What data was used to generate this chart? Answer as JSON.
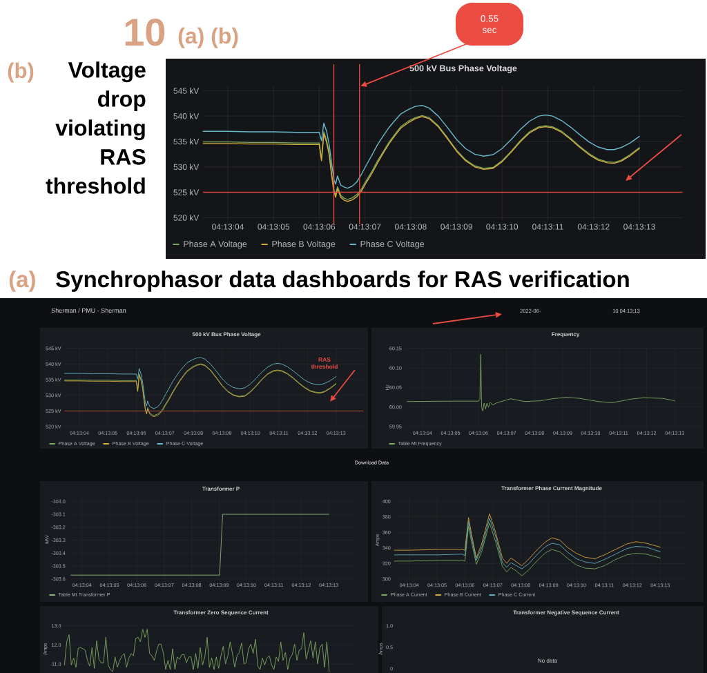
{
  "chart_data": [
    {
      "type": "line",
      "title": "500 kV Bus Phase Voltage",
      "annotations": [
        "10",
        "(a) (b)",
        "(b)",
        "Voltage drop violating RAS threshold",
        "0.55 sec"
      ],
      "x": [
        4.217628,
        4.217778,
        4.217917,
        4.218056,
        4.218194,
        4.218333,
        4.218347,
        4.218361,
        4.218378,
        4.218394,
        4.218408,
        4.218422,
        4.218433,
        4.218444,
        4.218464,
        4.218486,
        4.218506,
        4.218533,
        4.218561,
        4.218589,
        4.218617,
        4.218653,
        4.218686,
        4.218722,
        4.218756,
        4.218792,
        4.218828,
        4.218875,
        4.218917,
        4.218958,
        4.219,
        4.219056,
        4.219111,
        4.219167,
        4.219222,
        4.219278,
        4.219333,
        4.219389,
        4.219444,
        4.2195,
        4.219556,
        4.219611,
        4.219667,
        4.219708,
        4.21975,
        4.219806,
        4.219861,
        4.219917,
        4.219972,
        4.220028,
        4.220083,
        4.220125,
        4.220167,
        4.220222,
        4.220278
      ],
      "xlim": [
        4.217627,
        4.22054
      ],
      "xticks": [
        {
          "value": 4.217778,
          "label": "04:13:04"
        },
        {
          "value": 4.218056,
          "label": "04:13:05"
        },
        {
          "value": 4.218333,
          "label": "04:13:06"
        },
        {
          "value": 4.218611,
          "label": "04:13:07"
        },
        {
          "value": 4.218889,
          "label": "04:13:08"
        },
        {
          "value": 4.219167,
          "label": "04:13:09"
        },
        {
          "value": 4.219444,
          "label": "04:13:10"
        },
        {
          "value": 4.219722,
          "label": "04:13:11"
        },
        {
          "value": 4.22,
          "label": "04:13:12"
        },
        {
          "value": 4.220278,
          "label": "04:13:13"
        }
      ],
      "ylim": [
        519.5,
        546
      ],
      "yticks": [
        {
          "value": 520,
          "label": "520 kV"
        },
        {
          "value": 525,
          "label": "525 kV"
        },
        {
          "value": 530,
          "label": "530 kV"
        },
        {
          "value": 535,
          "label": "535 kV"
        },
        {
          "value": 540,
          "label": "540 kV"
        },
        {
          "value": 545,
          "label": "545 kV"
        }
      ],
      "series": [
        {
          "name": "Phase A Voltage",
          "color": "#78a85a",
          "values": [
            534.9,
            534.9,
            534.8,
            534.8,
            534.7,
            534.7,
            531.6,
            536.9,
            535.2,
            532.7,
            528.8,
            525.6,
            524.4,
            526.1,
            524.4,
            523.8,
            523.6,
            523.9,
            524.5,
            525.6,
            527.2,
            529.1,
            531.1,
            533.0,
            534.8,
            536.4,
            537.9,
            539.0,
            539.7,
            540.1,
            539.7,
            538.1,
            535.8,
            533.3,
            531.4,
            530.2,
            529.7,
            529.9,
            531.2,
            533.1,
            535.2,
            536.9,
            537.9,
            538.1,
            537.9,
            537.0,
            535.6,
            534.0,
            532.6,
            531.5,
            531.0,
            530.9,
            531.3,
            532.4,
            533.8
          ]
        },
        {
          "name": "Phase B Voltage",
          "color": "#d8ac3c",
          "values": [
            534.6,
            534.6,
            534.5,
            534.5,
            534.4,
            534.4,
            531.2,
            536.5,
            534.8,
            532.3,
            528.4,
            525.1,
            524.0,
            525.7,
            524.0,
            523.4,
            523.2,
            523.5,
            524.1,
            525.2,
            526.8,
            528.7,
            530.7,
            532.7,
            534.5,
            536.1,
            537.6,
            538.7,
            539.5,
            539.9,
            539.5,
            537.9,
            535.6,
            533.1,
            531.2,
            530.0,
            529.5,
            529.7,
            531.0,
            532.9,
            535.0,
            536.7,
            537.7,
            537.9,
            537.7,
            536.8,
            535.4,
            533.8,
            532.4,
            531.3,
            530.8,
            530.7,
            531.1,
            532.2,
            533.6
          ]
        },
        {
          "name": "Phase C Voltage",
          "color": "#67b9cb",
          "values": [
            537.0,
            537.0,
            536.9,
            536.9,
            536.8,
            536.8,
            535.2,
            538.6,
            537.0,
            534.3,
            530.8,
            527.5,
            526.6,
            528.2,
            526.4,
            526.0,
            525.8,
            526.2,
            527.0,
            528.5,
            530.2,
            532.3,
            534.3,
            536.1,
            537.7,
            539.1,
            540.4,
            541.3,
            541.9,
            542.1,
            541.6,
            540.0,
            537.8,
            535.4,
            533.6,
            532.5,
            532.1,
            532.4,
            533.6,
            535.4,
            537.4,
            539.0,
            540.0,
            540.2,
            540.0,
            539.1,
            537.8,
            536.3,
            534.9,
            533.9,
            533.4,
            533.4,
            533.8,
            534.7,
            536.0
          ]
        }
      ],
      "ref_lines": [
        {
          "axis": "y",
          "value": 525,
          "color": "#d9473c"
        },
        {
          "axis": "x",
          "value": 4.218422,
          "color": "#ef4b40"
        },
        {
          "axis": "x",
          "value": 4.218578,
          "color": "#ef4b40"
        }
      ],
      "grid": true,
      "legend": "bottom left"
    },
    {
      "type": "line",
      "title": "500 kV Bus Phase Voltage",
      "annotations": [
        "(a)",
        "Synchrophasor data dashboards for RAS verification",
        "Sherman / PMU - Sherman",
        "2022-06-",
        "10 04:13:13",
        "RAS threshold",
        "Download Data"
      ],
      "x": [
        4.217633,
        4.217778,
        4.217917,
        4.218056,
        4.218194,
        4.218333,
        4.218347,
        4.218361,
        4.218378,
        4.218394,
        4.218408,
        4.218422,
        4.218433,
        4.218444,
        4.218464,
        4.218486,
        4.218506,
        4.218533,
        4.218561,
        4.218589,
        4.218617,
        4.218653,
        4.218686,
        4.218722,
        4.218756,
        4.218792,
        4.218828,
        4.218875,
        4.218917,
        4.218958,
        4.219,
        4.219056,
        4.219111,
        4.219167,
        4.219222,
        4.219278,
        4.219333,
        4.219389,
        4.219444,
        4.2195,
        4.219556,
        4.219611,
        4.219667,
        4.219708,
        4.21975,
        4.219806,
        4.219861,
        4.219917,
        4.219972,
        4.220028,
        4.220083,
        4.220125,
        4.220167,
        4.220222,
        4.220278
      ],
      "xlim": [
        4.217633,
        4.220547
      ],
      "xticks": [
        {
          "value": 4.217778,
          "label": "04:13:04"
        },
        {
          "value": 4.218056,
          "label": "04:13:05"
        },
        {
          "value": 4.218333,
          "label": "04:13:06"
        },
        {
          "value": 4.218611,
          "label": "04:13:07"
        },
        {
          "value": 4.218889,
          "label": "04:13:08"
        },
        {
          "value": 4.219167,
          "label": "04:13:09"
        },
        {
          "value": 4.219444,
          "label": "04:13:10"
        },
        {
          "value": 4.219722,
          "label": "04:13:11"
        },
        {
          "value": 4.22,
          "label": "04:13:12"
        },
        {
          "value": 4.220278,
          "label": "04:13:13"
        }
      ],
      "ylim": [
        519.5,
        546
      ],
      "yticks": [
        {
          "value": 520,
          "label": "520 kV"
        },
        {
          "value": 525,
          "label": "525 kV"
        },
        {
          "value": 530,
          "label": "530 kV"
        },
        {
          "value": 535,
          "label": "535 kV"
        },
        {
          "value": 540,
          "label": "540 kV"
        },
        {
          "value": 545,
          "label": "545 kV"
        }
      ],
      "series": [
        {
          "name": "Phase A Voltage",
          "color": "#78a85a",
          "values": [
            534.9,
            534.9,
            534.8,
            534.8,
            534.7,
            534.7,
            531.6,
            536.9,
            535.2,
            532.7,
            528.8,
            525.6,
            524.4,
            526.1,
            524.4,
            523.8,
            523.6,
            523.9,
            524.5,
            525.6,
            527.2,
            529.1,
            531.1,
            533.0,
            534.8,
            536.4,
            537.9,
            539.0,
            539.7,
            540.1,
            539.7,
            538.1,
            535.8,
            533.3,
            531.4,
            530.2,
            529.7,
            529.9,
            531.2,
            533.1,
            535.2,
            536.9,
            537.9,
            538.1,
            537.9,
            537.0,
            535.6,
            534.0,
            532.6,
            531.5,
            531.0,
            530.9,
            531.3,
            532.4,
            533.8
          ]
        },
        {
          "name": "Phase B Voltage",
          "color": "#d8ac3c",
          "values": [
            534.6,
            534.6,
            534.5,
            534.5,
            534.4,
            534.4,
            531.2,
            536.5,
            534.8,
            532.3,
            528.4,
            525.1,
            524.0,
            525.7,
            524.0,
            523.4,
            523.2,
            523.5,
            524.1,
            525.2,
            526.8,
            528.7,
            530.7,
            532.7,
            534.5,
            536.1,
            537.6,
            538.7,
            539.5,
            539.9,
            539.5,
            537.9,
            535.6,
            533.1,
            531.2,
            530.0,
            529.5,
            529.7,
            531.0,
            532.9,
            535.0,
            536.7,
            537.7,
            537.9,
            537.7,
            536.8,
            535.4,
            533.8,
            532.4,
            531.3,
            530.8,
            530.7,
            531.1,
            532.2,
            533.6
          ]
        },
        {
          "name": "Phase C Voltage",
          "color": "#67b9cb",
          "values": [
            537.0,
            537.0,
            536.9,
            536.9,
            536.8,
            536.8,
            535.2,
            538.6,
            537.0,
            534.3,
            530.8,
            527.5,
            526.6,
            528.2,
            526.4,
            526.0,
            525.8,
            526.2,
            527.0,
            528.5,
            530.2,
            532.3,
            534.3,
            536.1,
            537.7,
            539.1,
            540.4,
            541.3,
            541.9,
            542.1,
            541.6,
            540.0,
            537.8,
            535.4,
            533.6,
            532.5,
            532.1,
            532.4,
            533.6,
            535.4,
            537.4,
            539.0,
            540.0,
            540.2,
            540.0,
            539.1,
            537.8,
            536.3,
            534.9,
            533.9,
            533.4,
            533.4,
            533.8,
            534.7,
            536.0
          ]
        }
      ],
      "ref_lines": [
        {
          "axis": "y",
          "value": 525,
          "color": "#c9443a"
        }
      ],
      "grid": true,
      "legend": "bottom left"
    },
    {
      "type": "line",
      "title": "Frequency",
      "ylabel": "Hz",
      "x": [
        4.217628,
        4.218056,
        4.218333,
        4.218347,
        4.218356,
        4.218364,
        4.218375,
        4.218389,
        4.218403,
        4.218417,
        4.218433,
        4.21845,
        4.218472,
        4.218517,
        4.218611,
        4.218653,
        4.218792,
        4.218944,
        4.219064,
        4.2192,
        4.219339,
        4.219519,
        4.219658,
        4.219839,
        4.219975,
        4.220158,
        4.220278
      ],
      "xlim": [
        4.217606,
        4.220542
      ],
      "xticks": [
        {
          "value": 4.217778,
          "label": "04:13:04"
        },
        {
          "value": 4.218056,
          "label": "04:13:05"
        },
        {
          "value": 4.218333,
          "label": "04:13:06"
        },
        {
          "value": 4.218611,
          "label": "04:13:07"
        },
        {
          "value": 4.218889,
          "label": "04:13:08"
        },
        {
          "value": 4.219167,
          "label": "04:13:09"
        },
        {
          "value": 4.219444,
          "label": "04:13:10"
        },
        {
          "value": 4.219722,
          "label": "04:13:11"
        },
        {
          "value": 4.22,
          "label": "04:13:12"
        },
        {
          "value": 4.220278,
          "label": "04:13:13"
        }
      ],
      "ylim": [
        59.945,
        60.155
      ],
      "yticks": [
        59.95,
        {
          "value": 60,
          "label": "60.00"
        },
        60.05,
        {
          "value": 60.1,
          "label": "60.10"
        },
        60.15
      ],
      "series": [
        {
          "name": "Table Mt Frequency",
          "color": "#7fa860",
          "values": [
            60.014,
            60.015,
            60.015,
            60.02,
            60.135,
            60.0,
            59.99,
            60.01,
            59.995,
            60.01,
            60.0,
            60.012,
            60.005,
            60.011,
            60.018,
            60.021,
            60.014,
            60.016,
            60.021,
            60.025,
            60.022,
            60.014,
            60.011,
            60.02,
            60.024,
            60.022,
            60.016
          ]
        }
      ],
      "grid": true,
      "legend": "bottom left"
    },
    {
      "type": "line",
      "title": "Transformer P",
      "ylabel": "MW",
      "x": [
        4.217664,
        4.219172,
        4.219203,
        4.220278
      ],
      "xlim": [
        4.217664,
        4.22055
      ],
      "xticks": [
        {
          "value": 4.217778,
          "label": "04:13:04"
        },
        {
          "value": 4.218056,
          "label": "04:13:05"
        },
        {
          "value": 4.218333,
          "label": "04:13:06"
        },
        {
          "value": 4.218611,
          "label": "04:13:07"
        },
        {
          "value": 4.218889,
          "label": "04:13:08"
        },
        {
          "value": 4.219167,
          "label": "04:13:09"
        },
        {
          "value": 4.219444,
          "label": "04:13:10"
        },
        {
          "value": 4.219722,
          "label": "04:13:11"
        },
        {
          "value": 4.22,
          "label": "04:13:12"
        },
        {
          "value": 4.220278,
          "label": "04:13:13"
        }
      ],
      "ylim": [
        -303.62,
        -302.97
      ],
      "yticks": [
        -303.6,
        -303.5,
        -303.4,
        -303.3,
        -303.2,
        -303.1,
        {
          "value": -303,
          "label": "-303.0"
        }
      ],
      "series": [
        {
          "name": "Table Mt Transformer P",
          "color": "#8fb37a",
          "values": [
            -303.57,
            -303.57,
            -303.1,
            -303.1
          ]
        }
      ],
      "grid": true,
      "legend": "bottom left"
    },
    {
      "type": "line",
      "title": "Transformer Phase Current Magnitude",
      "ylabel": "Amps",
      "x": [
        4.217631,
        4.217778,
        4.218056,
        4.218306,
        4.218333,
        4.218369,
        4.218403,
        4.218447,
        4.2185,
        4.218578,
        4.218639,
        4.218706,
        4.21875,
        4.218792,
        4.218847,
        4.2189,
        4.218972,
        4.219056,
        4.219139,
        4.2192,
        4.219278,
        4.219361,
        4.219444,
        4.219528,
        4.219628,
        4.219722,
        4.219833,
        4.219944,
        4.220036,
        4.220139,
        4.220278
      ],
      "xlim": [
        4.217631,
        4.220531
      ],
      "xticks": [
        {
          "value": 4.217778,
          "label": "04:13:04"
        },
        {
          "value": 4.218056,
          "label": "04:13:05"
        },
        {
          "value": 4.218333,
          "label": "04:13:06"
        },
        {
          "value": 4.218611,
          "label": "04:13:07"
        },
        {
          "value": 4.218889,
          "label": "04:13:08"
        },
        {
          "value": 4.219167,
          "label": "04:13:09"
        },
        {
          "value": 4.219444,
          "label": "04:13:10"
        },
        {
          "value": 4.219722,
          "label": "04:13:11"
        },
        {
          "value": 4.22,
          "label": "04:13:12"
        },
        {
          "value": 4.220278,
          "label": "04:13:13"
        }
      ],
      "ylim": [
        296,
        404
      ],
      "yticks": [
        300,
        320,
        340,
        360,
        380,
        400
      ],
      "series": [
        {
          "name": "Phase A Current",
          "color": "#78a85a",
          "values": [
            323,
            323,
            324,
            324,
            323,
            368,
            345,
            319,
            335,
            372,
            348,
            316,
            309,
            315,
            310,
            304,
            312,
            324,
            334,
            338,
            335,
            326,
            318,
            314,
            313,
            317,
            325,
            331,
            333,
            332,
            327
          ]
        },
        {
          "name": "Phase B Current",
          "color": "#d9a53f",
          "values": [
            337,
            337,
            338,
            338,
            337,
            379,
            355,
            327,
            345,
            384,
            360,
            327,
            320,
            327,
            322,
            317,
            326,
            338,
            348,
            353,
            350,
            340,
            333,
            328,
            326,
            331,
            338,
            345,
            348,
            346,
            341
          ]
        },
        {
          "name": "Phase C Current",
          "color": "#5fb0c4",
          "values": [
            331,
            331,
            331,
            332,
            330,
            374,
            350,
            324,
            340,
            378,
            355,
            321,
            315,
            321,
            317,
            313,
            320,
            332,
            342,
            346,
            344,
            334,
            326,
            322,
            320,
            325,
            332,
            339,
            342,
            341,
            335
          ]
        }
      ],
      "grid": true,
      "legend": "bottom left"
    },
    {
      "type": "line",
      "title": "Transformer Zero Sequence Current",
      "ylabel": "Amps",
      "categories": [
        null,
        null,
        null,
        null,
        null,
        null,
        null,
        null,
        null,
        null,
        null,
        null,
        null,
        null,
        null,
        null,
        null,
        null,
        null,
        null,
        null,
        null,
        null,
        null,
        null,
        null,
        null,
        null,
        null,
        null,
        null,
        null,
        null,
        null,
        null,
        null,
        null,
        null,
        null,
        null,
        null,
        null,
        null,
        null,
        null,
        null,
        null,
        null,
        null,
        null,
        null,
        null,
        null,
        null,
        null,
        null,
        null,
        null,
        null,
        null,
        null,
        null,
        null,
        null,
        null,
        null,
        null,
        null,
        null,
        null,
        null,
        null,
        null,
        null,
        null,
        null,
        null,
        null,
        null,
        null,
        null,
        null,
        null,
        null,
        null,
        null,
        null,
        null,
        null,
        null,
        null,
        null,
        null,
        null,
        null,
        null,
        null,
        null,
        null,
        null,
        null,
        null,
        null,
        null,
        null,
        null,
        null,
        null,
        null,
        null,
        null,
        null,
        null,
        null,
        null,
        null
      ],
      "values": [
        10.95,
        12.16,
        12.54,
        10.95,
        11.31,
        10.83,
        11.82,
        11.86,
        11.8,
        11.73,
        11.19,
        10.89,
        11.86,
        10.77,
        12.22,
        11.25,
        11.07,
        11.07,
        12.42,
        10.95,
        10.71,
        10.6,
        11.37,
        10.83,
        11.19,
        11.43,
        11.55,
        10.83,
        11.31,
        11.55,
        11.43,
        12.34,
        12.4,
        12.16,
        12.82,
        12.4,
        12.82,
        11.55,
        11.43,
        11.19,
        11.67,
        12.04,
        12.04,
        11.55,
        10.71,
        11.19,
        10.71,
        11.8,
        10.71,
        11.37,
        11.25,
        11.49,
        11.49,
        11.07,
        11.37,
        11.37,
        10.71,
        11.55,
        10.77,
        11.86,
        10.95,
        11.37,
        12.4,
        10.83,
        11.31,
        10.71,
        11.37,
        10.77,
        11.43,
        11.92,
        11.01,
        11.43,
        12.16,
        11.55,
        10.83,
        11.43,
        11.61,
        12.1,
        11.01,
        11.07,
        11.8,
        12.04,
        11.55,
        12.3,
        10.89,
        10.71,
        11.31,
        10.95,
        11.31,
        11.43,
        10.95,
        10.71,
        11.37,
        11.13,
        12.16,
        11.19,
        11.61,
        10.71,
        11.31,
        11.49,
        12.04,
        11.19,
        11.73,
        11.8,
        12.64,
        11.25,
        11.73,
        12.22,
        11.31,
        12.16,
        11.01,
        11.86,
        12.04,
        10.83,
        12.16,
        10.59
      ],
      "color": "#7fa860",
      "ylim": [
        10.53,
        13.05
      ],
      "yticks": [
        {
          "value": 11,
          "label": "11.0"
        },
        {
          "value": 12,
          "label": "12.0"
        },
        {
          "value": 13,
          "label": "13.0"
        }
      ],
      "grid": "y"
    },
    {
      "type": "other",
      "title": "Transformer Negative Sequence Current",
      "annotations": [
        "Amps",
        "1.0",
        "0.5",
        "0",
        "No data"
      ]
    }
  ]
}
